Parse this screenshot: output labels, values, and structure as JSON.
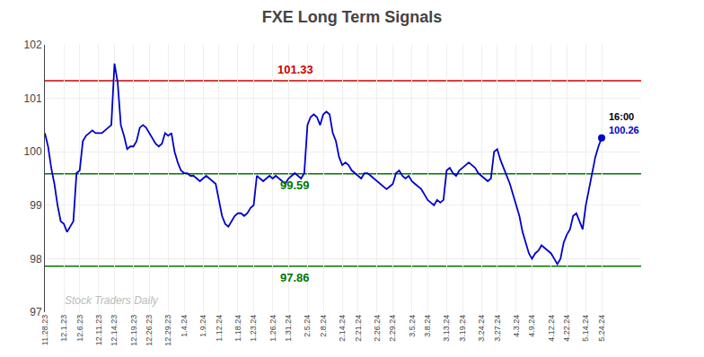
{
  "chart_data": {
    "type": "line",
    "title": "FXE Long Term Signals",
    "categories": [
      "11.28.23",
      null,
      null,
      null,
      null,
      null,
      "12.1.23",
      null,
      null,
      null,
      null,
      "12.6.23",
      null,
      null,
      null,
      null,
      null,
      "12.11.23",
      null,
      null,
      null,
      null,
      "12.14.23",
      null,
      null,
      null,
      null,
      null,
      "12.19.23",
      null,
      null,
      null,
      null,
      "12.26.23",
      null,
      null,
      null,
      null,
      null,
      "12.29.23",
      null,
      null,
      null,
      null,
      "1.4.24",
      null,
      null,
      null,
      null,
      null,
      "1.9.24",
      null,
      null,
      null,
      null,
      "1.12.24",
      null,
      null,
      null,
      null,
      null,
      "1.18.24",
      null,
      null,
      null,
      null,
      "1.23.24",
      null,
      null,
      null,
      null,
      null,
      "1.26.24",
      null,
      null,
      null,
      null,
      "1.31.24",
      null,
      null,
      null,
      null,
      null,
      "2.5.24",
      null,
      null,
      null,
      null,
      "2.8.24",
      null,
      null,
      null,
      null,
      null,
      "2.14.24",
      null,
      null,
      null,
      null,
      "2.21.24",
      null,
      null,
      null,
      null,
      null,
      "2.26.24",
      null,
      null,
      null,
      null,
      "2.29.24",
      null,
      null,
      null,
      null,
      null,
      "3.5.24",
      null,
      null,
      null,
      null,
      "3.8.24",
      null,
      null,
      null,
      null,
      null,
      "3.13.24",
      null,
      null,
      null,
      null,
      "3.19.24",
      null,
      null,
      null,
      null,
      null,
      "3.24.24",
      null,
      null,
      null,
      null,
      "3.27.24",
      null,
      null,
      null,
      null,
      null,
      "4.3.24",
      null,
      null,
      null,
      null,
      "4.9.24",
      null,
      null,
      null,
      null,
      null,
      "4.12.24",
      null,
      null,
      null,
      null,
      "4.22.24",
      null,
      null,
      null,
      null,
      null,
      "5.14.24",
      null,
      null,
      null,
      null,
      "5.24.24"
    ],
    "values": [
      100.35,
      100.1,
      99.7,
      99.4,
      99.0,
      98.7,
      98.65,
      98.5,
      98.6,
      98.7,
      99.6,
      99.65,
      100.2,
      100.3,
      100.35,
      100.4,
      100.35,
      100.35,
      100.35,
      100.4,
      100.45,
      100.5,
      101.65,
      101.3,
      100.5,
      100.3,
      100.05,
      100.1,
      100.1,
      100.2,
      100.45,
      100.5,
      100.45,
      100.35,
      100.25,
      100.15,
      100.1,
      100.15,
      100.35,
      100.3,
      100.35,
      100.0,
      99.8,
      99.65,
      99.6,
      99.6,
      99.55,
      99.55,
      99.5,
      99.45,
      99.5,
      99.55,
      99.5,
      99.45,
      99.4,
      99.1,
      98.8,
      98.65,
      98.6,
      98.7,
      98.8,
      98.85,
      98.85,
      98.8,
      98.85,
      98.95,
      99.0,
      99.55,
      99.5,
      99.45,
      99.5,
      99.55,
      99.5,
      99.55,
      99.5,
      99.45,
      99.4,
      99.5,
      99.55,
      99.6,
      99.55,
      99.5,
      99.6,
      100.5,
      100.65,
      100.7,
      100.65,
      100.5,
      100.7,
      100.75,
      100.7,
      100.35,
      100.2,
      99.9,
      99.75,
      99.8,
      99.75,
      99.65,
      99.6,
      99.55,
      99.5,
      99.6,
      99.6,
      99.55,
      99.5,
      99.45,
      99.4,
      99.35,
      99.3,
      99.35,
      99.4,
      99.6,
      99.65,
      99.55,
      99.5,
      99.55,
      99.45,
      99.4,
      99.35,
      99.3,
      99.2,
      99.1,
      99.05,
      99.0,
      99.1,
      99.05,
      99.1,
      99.65,
      99.7,
      99.6,
      99.55,
      99.65,
      99.7,
      99.75,
      99.8,
      99.75,
      99.7,
      99.6,
      99.55,
      99.5,
      99.45,
      99.5,
      100.0,
      100.05,
      99.85,
      99.7,
      99.55,
      99.4,
      99.2,
      99.0,
      98.8,
      98.5,
      98.3,
      98.1,
      98.0,
      98.1,
      98.15,
      98.25,
      98.2,
      98.15,
      98.1,
      98.0,
      97.9,
      98.0,
      98.3,
      98.45,
      98.55,
      98.8,
      98.85,
      98.7,
      98.55,
      99.0,
      99.3,
      99.6,
      99.9,
      100.1,
      100.26
    ],
    "color": "#0000cc",
    "ylim": [
      97,
      102
    ],
    "yticks": [
      97,
      98,
      99,
      100,
      101,
      102
    ],
    "grid": true,
    "reference_lines": [
      {
        "value": 101.33,
        "label": "101.33",
        "color": "#cc0000"
      },
      {
        "value": 99.59,
        "label": "99.59",
        "color": "#007700"
      },
      {
        "value": 97.86,
        "label": "97.86",
        "color": "#007700"
      }
    ],
    "last_point_labels": [
      "16:00",
      "100.26"
    ],
    "watermark": {
      "text": "Stock Traders Daily",
      "color": "#bbbbbb"
    }
  }
}
